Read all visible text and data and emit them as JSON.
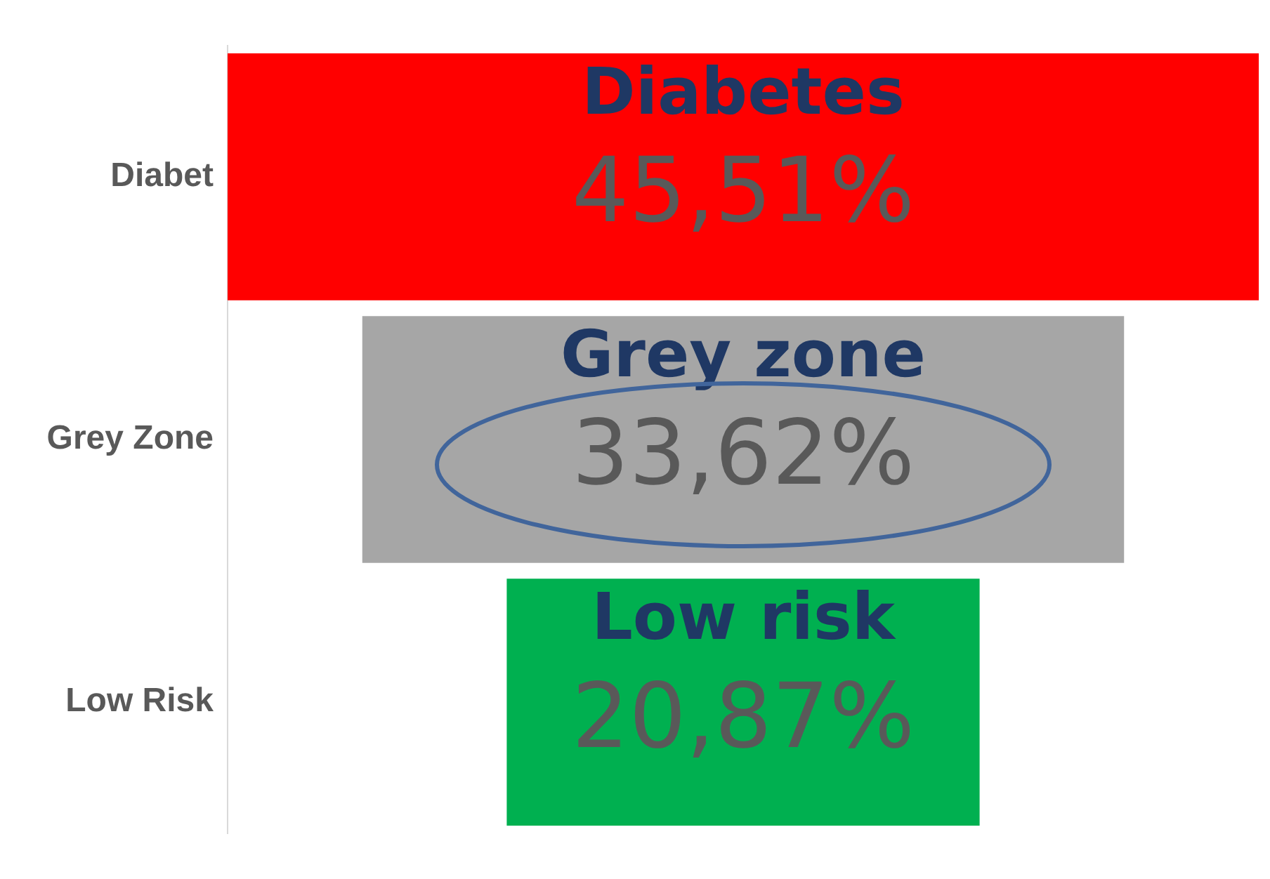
{
  "chart_data": {
    "type": "other",
    "categories": [
      "Diabet",
      "Grey Zone",
      "Low Risk"
    ],
    "values": [
      45.51,
      33.62,
      20.87
    ],
    "colors": [
      "#ff0000",
      "#a6a6a6",
      "#00b050"
    ],
    "value_labels": [
      "45,51%",
      "33,62%",
      "20,87%"
    ],
    "annotations": [
      {
        "text": "Diabetes",
        "y": "Diabet"
      },
      {
        "text": "Grey zone",
        "y": "Grey Zone"
      },
      {
        "text": "Low risk",
        "y": "Low Risk"
      }
    ],
    "legend": false
  }
}
